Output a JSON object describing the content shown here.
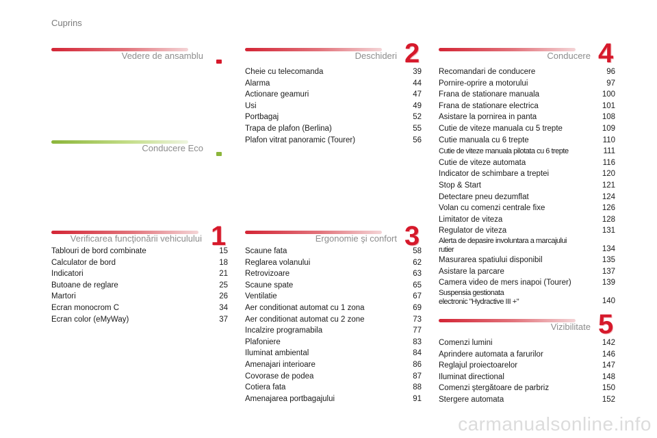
{
  "page_label": "Cuprins",
  "sections": {
    "vedere": {
      "title": "Vedere de ansamblu"
    },
    "eco": {
      "title": "Conducere Eco"
    },
    "verificarea": {
      "title": "Verificarea funcţionării vehiculului",
      "number": "1",
      "items": [
        {
          "title": "Tablouri de bord combinate",
          "page": "15"
        },
        {
          "title": "Calculator de bord",
          "page": "18"
        },
        {
          "title": "Indicatori",
          "page": "21"
        },
        {
          "title": "Butoane de reglare",
          "page": "25"
        },
        {
          "title": "Martori",
          "page": "26"
        },
        {
          "title": "Ecran monocrom C",
          "page": "34"
        },
        {
          "title": "Ecran color (eMyWay)",
          "page": "37"
        }
      ]
    },
    "deschideri": {
      "title": "Deschideri",
      "number": "2",
      "items": [
        {
          "title": "Cheie cu telecomanda",
          "page": "39"
        },
        {
          "title": "Alarma",
          "page": "44"
        },
        {
          "title": "Actionare geamuri",
          "page": "47"
        },
        {
          "title": "Usi",
          "page": "49"
        },
        {
          "title": "Portbagaj",
          "page": "52"
        },
        {
          "title": "Trapa de plafon (Berlina)",
          "page": "55"
        },
        {
          "title": "Plafon vitrat panoramic (Tourer)",
          "page": "56"
        }
      ]
    },
    "ergonomie": {
      "title": "Ergonomie şi confort",
      "number": "3",
      "items": [
        {
          "title": "Scaune fata",
          "page": "58"
        },
        {
          "title": "Reglarea volanului",
          "page": "62"
        },
        {
          "title": "Retrovizoare",
          "page": "63"
        },
        {
          "title": "Scaune spate",
          "page": "65"
        },
        {
          "title": "Ventilatie",
          "page": "67"
        },
        {
          "title": "Aer conditionat automat cu 1 zona",
          "page": "69"
        },
        {
          "title": "Aer conditionat automat cu 2 zone",
          "page": "73"
        },
        {
          "title": "Incalzire programabila",
          "page": "77"
        },
        {
          "title": "Plafoniere",
          "page": "83"
        },
        {
          "title": "Iluminat ambiental",
          "page": "84"
        },
        {
          "title": "Amenajari interioare",
          "page": "86"
        },
        {
          "title": "Covorase de podea",
          "page": "87"
        },
        {
          "title": "Cotiera fata",
          "page": "88"
        },
        {
          "title": "Amenajarea portbagajului",
          "page": "91"
        }
      ]
    },
    "conducere": {
      "title": "Conducere",
      "number": "4",
      "items": [
        {
          "title": "Recomandari de conducere",
          "page": "96"
        },
        {
          "title": "Pornire-oprire a motorului",
          "page": "97"
        },
        {
          "title": "Frana de stationare manuala",
          "page": "100"
        },
        {
          "title": "Frana de stationare electrica",
          "page": "101"
        },
        {
          "title": "Asistare la pornirea in panta",
          "page": "108"
        },
        {
          "title": "Cutie de viteze manuala cu 5 trepte",
          "page": "109"
        },
        {
          "title": "Cutie manuala cu 6 trepte",
          "page": "110"
        },
        {
          "title": "Cutie de viteze manuala pilotata cu 6 trepte",
          "page": "111"
        },
        {
          "title": "Cutie de viteze automata",
          "page": "116"
        },
        {
          "title": "Indicator de schimbare a treptei",
          "page": "120"
        },
        {
          "title": "Stop & Start",
          "page": "121"
        },
        {
          "title": "Detectare pneu dezumflat",
          "page": "124"
        },
        {
          "title": "Volan cu comenzi centrale fixe",
          "page": "126"
        },
        {
          "title": "Limitator de viteza",
          "page": "128"
        },
        {
          "title": "Regulator de viteza",
          "page": "131"
        },
        {
          "title": "Alerta de depasire involuntara a marcajului\nrutier",
          "page": "134"
        },
        {
          "title": "Masurarea spatiului disponibil",
          "page": "135"
        },
        {
          "title": "Asistare la parcare",
          "page": "137"
        },
        {
          "title": "Camera video de mers inapoi (Tourer)",
          "page": "139"
        },
        {
          "title": "Suspensia gestionata\nelectronic \"Hydractive III +\"",
          "page": "140"
        }
      ]
    },
    "vizibilitate": {
      "title": "Vizibilitate",
      "number": "5",
      "items": [
        {
          "title": "Comenzi lumini",
          "page": "142"
        },
        {
          "title": "Aprindere automata a farurilor",
          "page": "146"
        },
        {
          "title": "Reglajul proiectoarelor",
          "page": "147"
        },
        {
          "title": "Iluminat directional",
          "page": "148"
        },
        {
          "title": "Comenzi ştergătoare de parbriz",
          "page": "150"
        },
        {
          "title": "Stergere automata",
          "page": "152"
        }
      ]
    }
  },
  "watermark": "carmanualsonline.info"
}
